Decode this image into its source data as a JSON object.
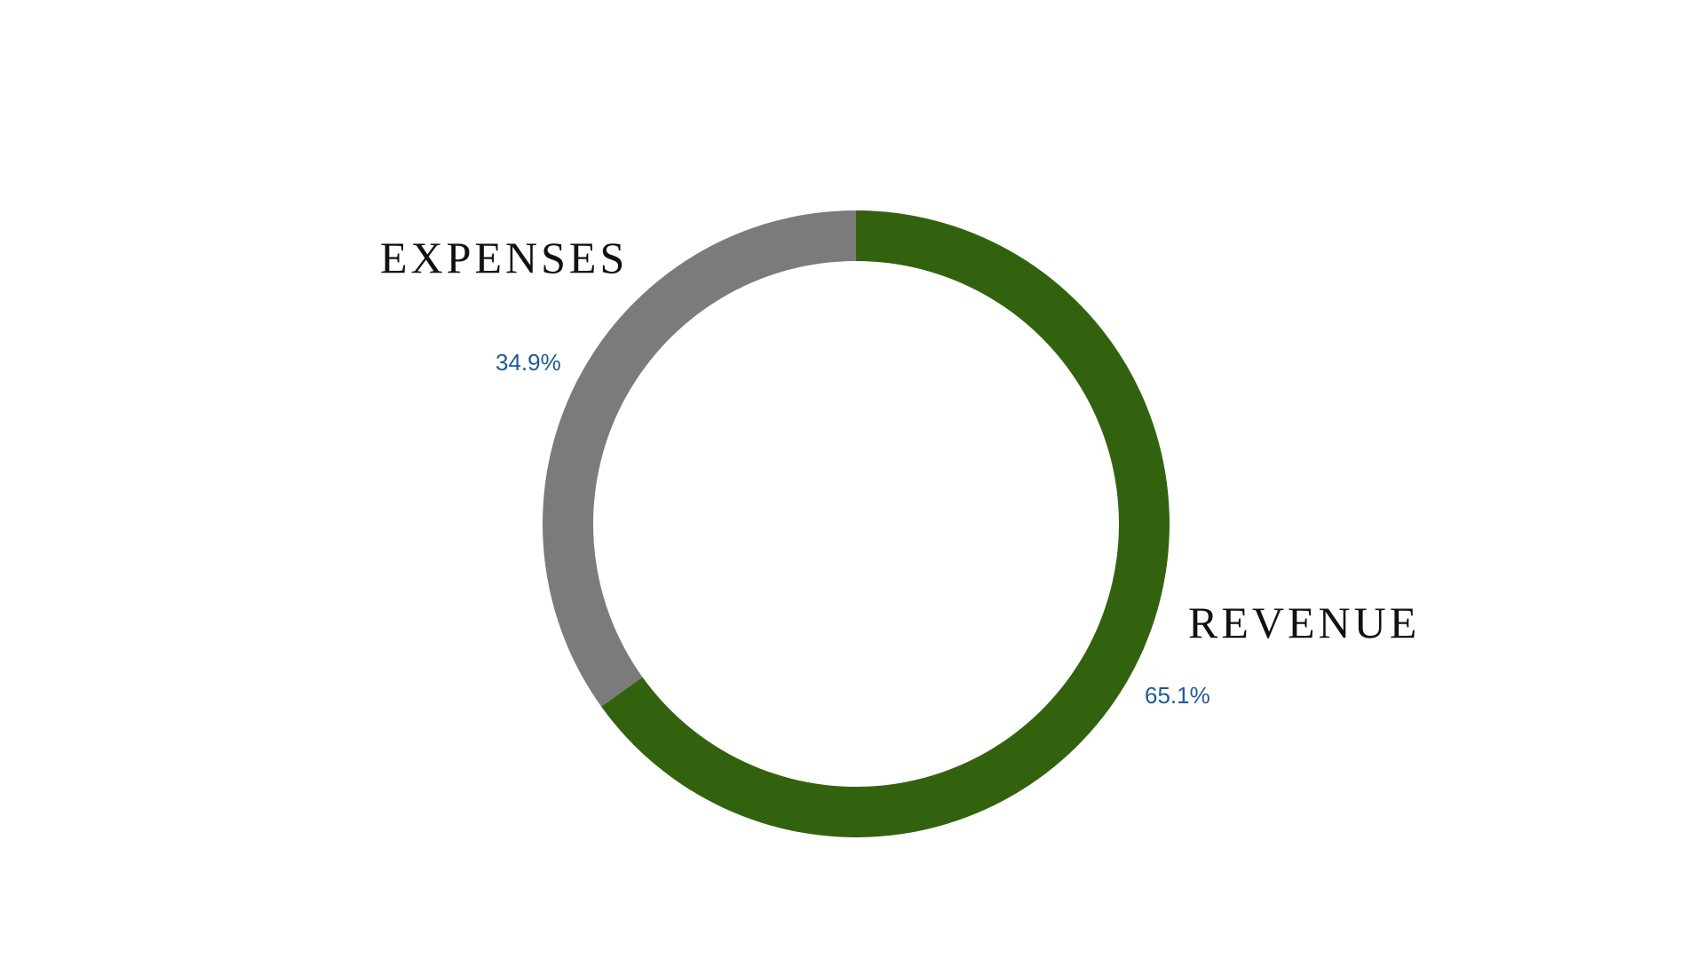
{
  "chart_data": {
    "type": "pie",
    "style": "donut",
    "title": "",
    "slices": [
      {
        "label": "REVENUE",
        "value": 65.1,
        "value_label": "65.1%",
        "color": "#33620f"
      },
      {
        "label": "EXPENSES",
        "value": 34.9,
        "value_label": "34.9%",
        "color": "#7b7b7b"
      }
    ],
    "start_angle": "12 o'clock",
    "direction": "clockwise",
    "value_label_color": "#1f5a93",
    "legend": "none",
    "grid": false
  }
}
